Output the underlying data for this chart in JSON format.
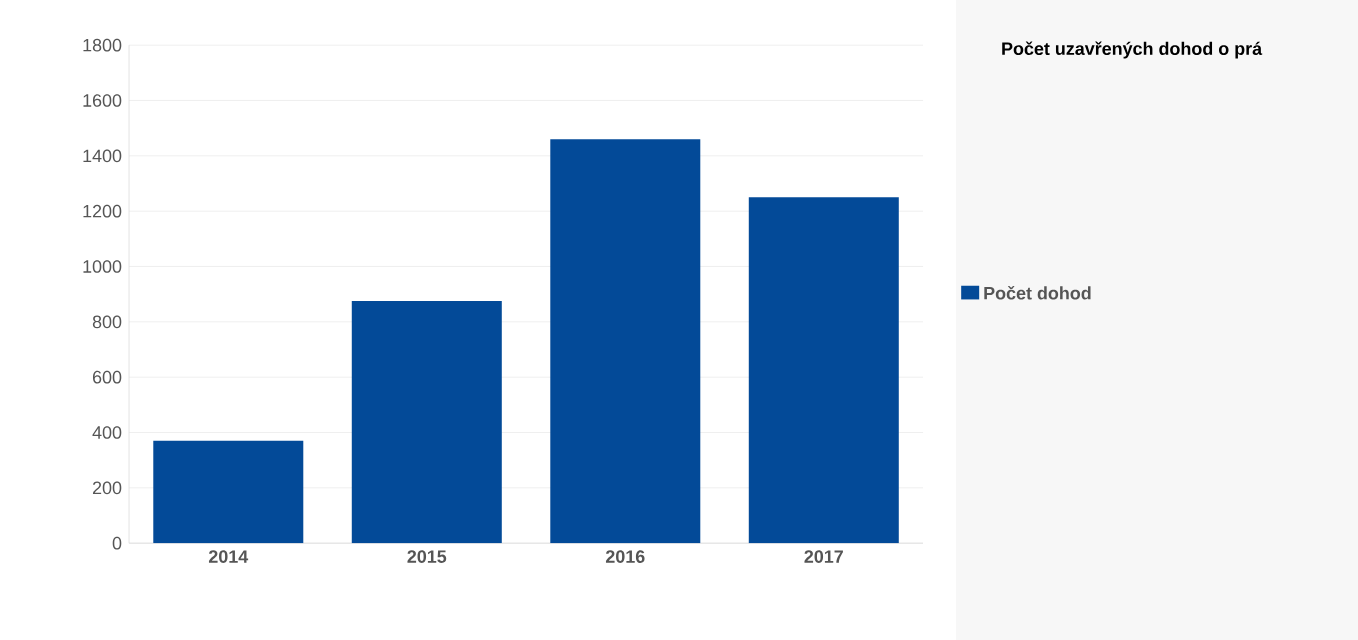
{
  "chart_data": {
    "type": "bar",
    "legend_title": "Počet uzavřených dohod o prá",
    "categories": [
      "2014",
      "2015",
      "2016",
      "2017"
    ],
    "series": [
      {
        "name": "Počet dohod",
        "color": "#034a98",
        "values": [
          370,
          875,
          1460,
          1250
        ]
      }
    ],
    "ylim": [
      0,
      1800
    ],
    "yticks": [
      0,
      200,
      400,
      600,
      800,
      1000,
      1200,
      1400,
      1600,
      1800
    ],
    "grid": "y",
    "legend": "right"
  }
}
